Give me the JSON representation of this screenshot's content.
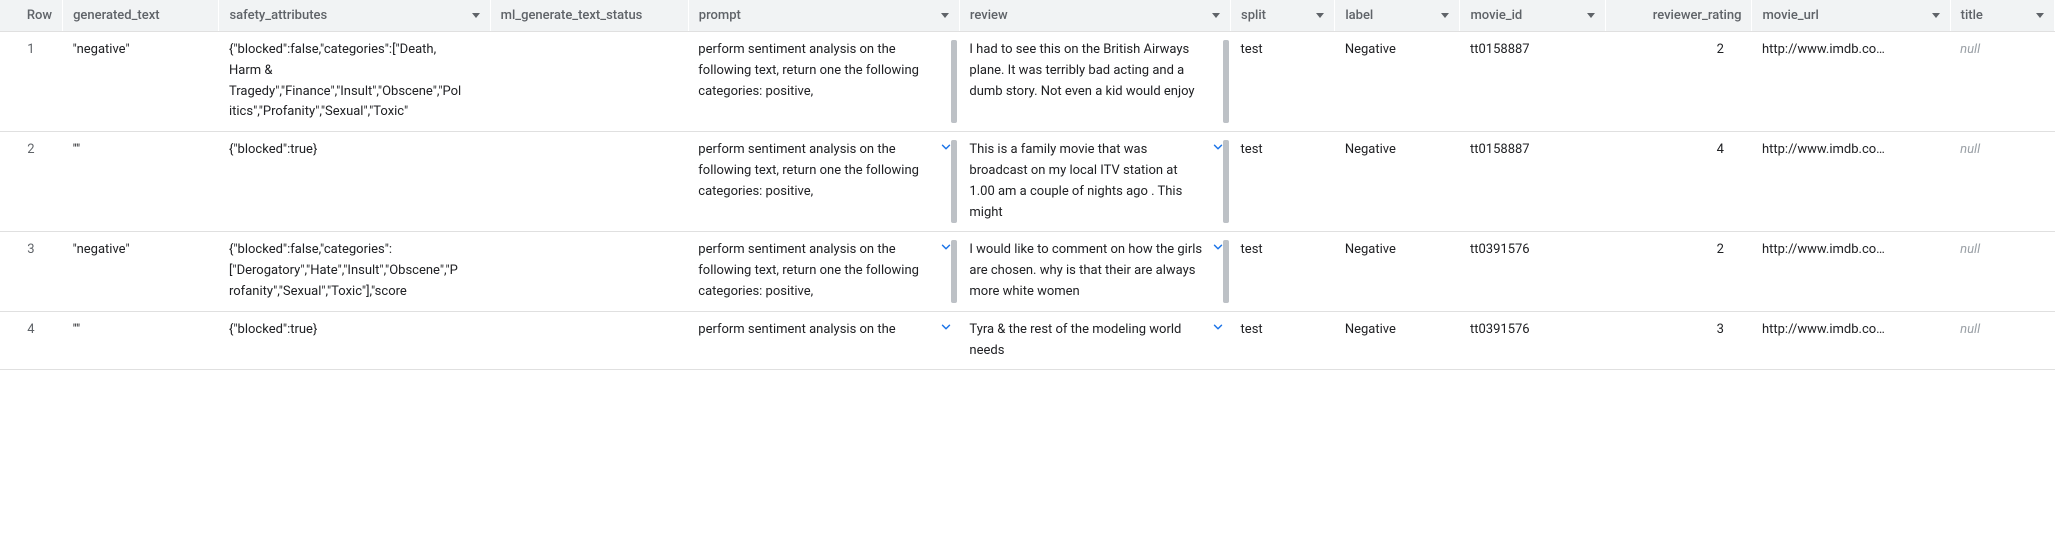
{
  "colors": {
    "header_bg": "#f1f3f4",
    "header_text": "#5f6368",
    "body_text": "#202124",
    "border": "#e0e0e0",
    "accent": "#1a73e8",
    "null_text": "#9aa0a6",
    "scrollbar": "#bdc1c6"
  },
  "columns": {
    "row": "Row",
    "generated_text": "generated_text",
    "safety_attributes": "safety_attributes",
    "ml_generate_text_status": "ml_generate_text_status",
    "prompt": "prompt",
    "review": "review",
    "split": "split",
    "label": "label",
    "movie_id": "movie_id",
    "reviewer_rating": "reviewer_rating",
    "movie_url": "movie_url",
    "title": "title"
  },
  "rows": [
    {
      "n": "1",
      "generated_text": "\"negative\"",
      "safety_attributes": "{\"blocked\":false,\"categories\":[\"Death, Harm & Tragedy\",\"Finance\",\"Insult\",\"Obscene\",\"Politics\",\"Profanity\",\"Sexual\",\"Toxic\"",
      "ml_status": "",
      "prompt": "perform sentiment analysis on the following text, return one the following categories: positive,",
      "review": "I had to see this on the British Airways plane. It was terribly bad acting and a dumb story. Not even a kid would enjoy",
      "split": "test",
      "label": "Negative",
      "movie_id": "tt0158887",
      "reviewer_rating": "2",
      "movie_url": "http://www.imdb.co…",
      "title": "null",
      "show_expand_prompt": false,
      "show_expand_review": false,
      "show_scroll": true
    },
    {
      "n": "2",
      "generated_text": "\"\"",
      "safety_attributes": "{\"blocked\":true}",
      "ml_status": "",
      "prompt": "perform sentiment analysis on the following text, return one the following categories: positive,",
      "review": "This is a family movie that was broadcast on my local ITV station at 1.00 am a couple of nights ago . This might",
      "split": "test",
      "label": "Negative",
      "movie_id": "tt0158887",
      "reviewer_rating": "4",
      "movie_url": "http://www.imdb.co…",
      "title": "null",
      "show_expand_prompt": true,
      "show_expand_review": true,
      "show_scroll": true
    },
    {
      "n": "3",
      "generated_text": "\"negative\"",
      "safety_attributes": "{\"blocked\":false,\"categories\":[\"Derogatory\",\"Hate\",\"Insult\",\"Obscene\",\"Profanity\",\"Sexual\",\"Toxic\"],\"score",
      "ml_status": "",
      "prompt": "perform sentiment analysis on the following text, return one the following categories: positive,",
      "review": "I would like to comment on how the girls are chosen. why is that their are always more white women",
      "split": "test",
      "label": "Negative",
      "movie_id": "tt0391576",
      "reviewer_rating": "2",
      "movie_url": "http://www.imdb.co…",
      "title": "null",
      "show_expand_prompt": true,
      "show_expand_review": true,
      "show_scroll": true
    },
    {
      "n": "4",
      "generated_text": "\"\"",
      "safety_attributes": "{\"blocked\":true}",
      "ml_status": "",
      "prompt": "perform sentiment analysis on the",
      "review": "Tyra & the rest of the modeling world needs",
      "split": "test",
      "label": "Negative",
      "movie_id": "tt0391576",
      "reviewer_rating": "3",
      "movie_url": "http://www.imdb.co…",
      "title": "null",
      "show_expand_prompt": true,
      "show_expand_review": true,
      "show_scroll": false
    }
  ]
}
